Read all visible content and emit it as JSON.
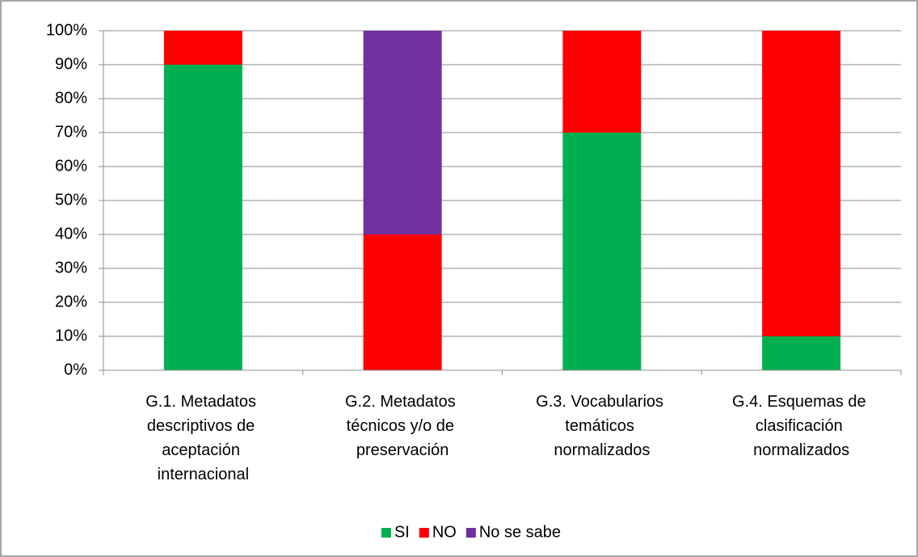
{
  "chart_data": {
    "type": "stacked_bar",
    "categories": [
      "G.1. Metadatos descriptivos de aceptación internacional",
      "G.2. Metadatos técnicos y/o de preservación",
      "G.3. Vocabularios temáticos normalizados",
      "G.4. Esquemas de clasificación normalizados"
    ],
    "series": [
      {
        "name": "SI",
        "color": "#00b050",
        "values": [
          90,
          0,
          70,
          10
        ]
      },
      {
        "name": "NO",
        "color": "#ff0000",
        "values": [
          10,
          40,
          30,
          90
        ]
      },
      {
        "name": "No se sabe",
        "color": "#7030a0",
        "values": [
          0,
          60,
          0,
          0
        ]
      }
    ],
    "ylim": [
      0,
      100
    ],
    "yticks": [
      {
        "value": 0,
        "label": "0%"
      },
      {
        "value": 10,
        "label": "10%"
      },
      {
        "value": 20,
        "label": "20%"
      },
      {
        "value": 30,
        "label": "30%"
      },
      {
        "value": 40,
        "label": "40%"
      },
      {
        "value": 50,
        "label": "50%"
      },
      {
        "value": 60,
        "label": "60%"
      },
      {
        "value": 70,
        "label": "70%"
      },
      {
        "value": 80,
        "label": "80%"
      },
      {
        "value": 90,
        "label": "90%"
      },
      {
        "value": 100,
        "label": "100%"
      }
    ],
    "grid": true,
    "legend": "bottom"
  }
}
